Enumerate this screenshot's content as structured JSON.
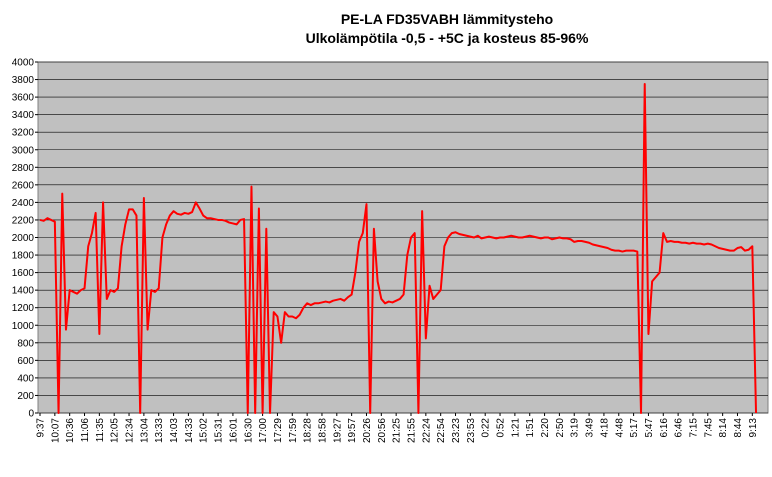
{
  "chart_data": {
    "type": "line",
    "title": "PE-LA FD35VABH lämmitysteho",
    "subtitle": "Ulkolämpötila  -0,5 - +5C ja kosteus 85-96%",
    "color": "#ff0000",
    "grid": true,
    "ylim": [
      0,
      4000
    ],
    "yticks": [
      0,
      200,
      400,
      600,
      800,
      1000,
      1200,
      1400,
      1600,
      1800,
      2000,
      2200,
      2400,
      2600,
      2800,
      3000,
      3200,
      3400,
      3600,
      3800,
      4000
    ],
    "categories": [
      "9:37",
      null,
      null,
      null,
      "10:07",
      null,
      null,
      null,
      "10:36",
      null,
      null,
      null,
      "11:06",
      null,
      null,
      null,
      "11:35",
      null,
      null,
      null,
      "12:05",
      null,
      null,
      null,
      "12:34",
      null,
      null,
      null,
      "13:04",
      null,
      null,
      null,
      "13:33",
      null,
      null,
      null,
      "14:03",
      null,
      null,
      null,
      "14:33",
      null,
      null,
      null,
      "15:02",
      null,
      null,
      null,
      "15:31",
      null,
      null,
      null,
      "16:01",
      null,
      null,
      null,
      "16:30",
      null,
      null,
      null,
      "17:00",
      null,
      null,
      null,
      "17:29",
      null,
      null,
      null,
      "17:59",
      null,
      null,
      null,
      "18:28",
      null,
      null,
      null,
      "18:58",
      null,
      null,
      null,
      "19:27",
      null,
      null,
      null,
      "19:57",
      null,
      null,
      null,
      "20:26",
      null,
      null,
      null,
      "20:56",
      null,
      null,
      null,
      "21:25",
      null,
      null,
      null,
      "21:55",
      null,
      null,
      null,
      "22:24",
      null,
      null,
      null,
      "22:54",
      null,
      null,
      null,
      "23:23",
      null,
      null,
      null,
      "23:53",
      null,
      null,
      null,
      "0:22",
      null,
      null,
      null,
      "0:52",
      null,
      null,
      null,
      "1:21",
      null,
      null,
      null,
      "1:51",
      null,
      null,
      null,
      "2:20",
      null,
      null,
      null,
      "2:50",
      null,
      null,
      null,
      "3:19",
      null,
      null,
      null,
      "3:49",
      null,
      null,
      null,
      "4:18",
      null,
      null,
      null,
      "4:48",
      null,
      null,
      null,
      "5:17",
      null,
      null,
      null,
      "5:47",
      null,
      null,
      null,
      "6:16",
      null,
      null,
      null,
      "6:46",
      null,
      null,
      null,
      "7:15",
      null,
      null,
      null,
      "7:45",
      null,
      null,
      null,
      "8:14",
      null,
      null,
      null,
      "8:44",
      null,
      null,
      null,
      "9:13",
      null
    ],
    "values": [
      2200,
      2190,
      2220,
      2200,
      2180,
      0,
      2500,
      950,
      1400,
      1380,
      1360,
      1400,
      1420,
      1900,
      2050,
      2280,
      900,
      2400,
      1300,
      1400,
      1380,
      1420,
      1900,
      2150,
      2320,
      2320,
      2250,
      0,
      2450,
      950,
      1400,
      1380,
      1420,
      2000,
      2150,
      2250,
      2300,
      2270,
      2260,
      2280,
      2270,
      2290,
      2400,
      2330,
      2250,
      2220,
      2220,
      2210,
      2200,
      2200,
      2190,
      2170,
      2160,
      2150,
      2200,
      2210,
      0,
      2580,
      0,
      2330,
      0,
      2100,
      0,
      1150,
      1100,
      800,
      1150,
      1100,
      1100,
      1080,
      1120,
      1200,
      1250,
      1230,
      1250,
      1250,
      1260,
      1270,
      1260,
      1280,
      1290,
      1300,
      1280,
      1320,
      1350,
      1600,
      1950,
      2050,
      2380,
      0,
      2100,
      1500,
      1300,
      1250,
      1270,
      1260,
      1280,
      1300,
      1350,
      1800,
      2000,
      2050,
      0,
      2300,
      850,
      1450,
      1300,
      1350,
      1400,
      1900,
      2000,
      2050,
      2060,
      2040,
      2030,
      2020,
      2010,
      2000,
      2020,
      1990,
      2000,
      2010,
      2000,
      1990,
      2000,
      2000,
      2010,
      2020,
      2010,
      2000,
      2000,
      2010,
      2020,
      2010,
      2000,
      1990,
      2000,
      2000,
      1980,
      1990,
      2000,
      1990,
      1990,
      1980,
      1950,
      1960,
      1960,
      1950,
      1940,
      1920,
      1910,
      1900,
      1890,
      1880,
      1860,
      1850,
      1850,
      1840,
      1850,
      1850,
      1850,
      1840,
      0,
      3750,
      900,
      1500,
      1550,
      1600,
      2050,
      1950,
      1960,
      1950,
      1950,
      1940,
      1940,
      1930,
      1940,
      1930,
      1930,
      1920,
      1930,
      1920,
      1900,
      1880,
      1870,
      1860,
      1850,
      1850,
      1880,
      1890,
      1850,
      1860,
      1900,
      0
    ]
  }
}
